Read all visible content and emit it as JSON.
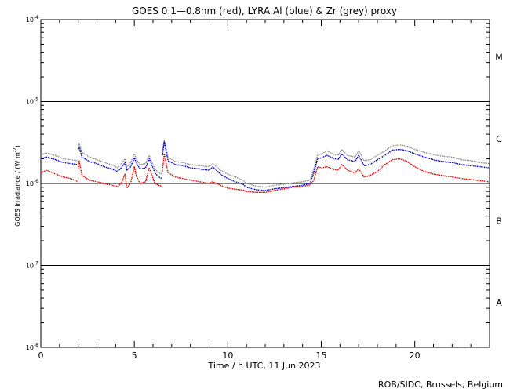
{
  "chart_data": {
    "type": "line",
    "title": "GOES 0.1—0.8nm (red), LYRA Al (blue) & Zr (grey) proxy",
    "xlabel": "Time / h UTC, 11 Jun 2023",
    "ylabel_parts": [
      "GOES Irradiance / (W m",
      "-2",
      ")"
    ],
    "credit": "ROB/SIDC, Brussels, Belgium",
    "xlim": [
      0,
      24
    ],
    "ylim": [
      1e-08,
      0.0001
    ],
    "yscale": "log",
    "x_ticks": [
      {
        "value": 0,
        "label": "0"
      },
      {
        "value": 5,
        "label": "5"
      },
      {
        "value": 10,
        "label": "10"
      },
      {
        "value": 15,
        "label": "15"
      },
      {
        "value": 20,
        "label": "20"
      }
    ],
    "y_ticks": [
      {
        "exp": -4,
        "base": "10",
        "sup": "-4"
      },
      {
        "exp": -5,
        "base": "10",
        "sup": "-5"
      },
      {
        "exp": -6,
        "base": "10",
        "sup": "-6"
      },
      {
        "exp": -7,
        "base": "10",
        "sup": "-7"
      },
      {
        "exp": -8,
        "base": "10",
        "sup": "-8"
      }
    ],
    "flare_class_lines": [
      1e-05,
      1e-06,
      1e-07
    ],
    "flare_classes": [
      {
        "label": "M",
        "center": 3.5e-05
      },
      {
        "label": "C",
        "center": 3.5e-06
      },
      {
        "label": "B",
        "center": 3.5e-07
      },
      {
        "label": "A",
        "center": 3.5e-08
      }
    ],
    "series": [
      {
        "color": "#909090",
        "segments": [
          {
            "x": [
              0,
              0.3,
              0.8,
              1.2,
              1.6,
              2.0
            ],
            "y": [
              2.25e-06,
              2.35e-06,
              2.2e-06,
              2e-06,
              1.95e-06,
              1.9e-06
            ]
          },
          {
            "x": [
              2.0,
              2.05,
              2.2,
              2.6,
              3.0,
              3.4,
              3.8,
              4.1,
              4.3,
              4.5,
              4.6,
              4.8,
              5.0,
              5.1,
              5.3,
              5.6,
              5.8,
              6.1,
              6.3,
              6.5
            ],
            "y": [
              2.9e-06,
              3.1e-06,
              2.4e-06,
              2.1e-06,
              1.95e-06,
              1.8e-06,
              1.7e-06,
              1.55e-06,
              1.75e-06,
              2e-06,
              1.6e-06,
              1.8e-06,
              2.3e-06,
              2e-06,
              1.7e-06,
              1.75e-06,
              2.2e-06,
              1.5e-06,
              1.35e-06,
              1.3e-06
            ]
          },
          {
            "x": [
              6.5,
              6.6,
              6.8,
              7.2,
              7.6,
              8.0,
              8.5,
              9.0,
              9.2,
              9.6,
              10.0,
              10.4,
              10.8,
              11.0,
              11.5,
              12.0,
              12.5,
              13.0,
              13.5,
              14.0,
              14.4,
              14.6,
              14.8,
              15.0,
              15.3,
              15.6,
              15.9,
              16.1,
              16.4,
              16.8,
              17.0,
              17.3,
              17.6,
              18.0,
              18.4,
              18.8,
              19.2,
              19.6,
              20.0,
              20.5,
              21.0,
              21.5,
              22.0,
              22.5,
              23.0,
              23.5,
              24.0
            ],
            "y": [
              2.5e-06,
              3.4e-06,
              2.1e-06,
              1.85e-06,
              1.8e-06,
              1.7e-06,
              1.65e-06,
              1.6e-06,
              1.75e-06,
              1.45e-06,
              1.3e-06,
              1.2e-06,
              1.1e-06,
              1e-06,
              9.3e-07,
              9e-07,
              9.5e-07,
              9.8e-07,
              1.02e-06,
              1.05e-06,
              1.1e-06,
              1.5e-06,
              2.2e-06,
              2.3e-06,
              2.5e-06,
              2.3e-06,
              2.2e-06,
              2.6e-06,
              2.2e-06,
              2.1e-06,
              2.5e-06,
              1.9e-06,
              1.95e-06,
              2.2e-06,
              2.5e-06,
              2.9e-06,
              2.95e-06,
              2.85e-06,
              2.6e-06,
              2.4e-06,
              2.25e-06,
              2.15e-06,
              2.1e-06,
              1.95e-06,
              1.9e-06,
              1.8e-06,
              1.75e-06
            ]
          }
        ]
      },
      {
        "color": "#0000cc",
        "segments": [
          {
            "x": [
              0,
              0.3,
              0.8,
              1.2,
              1.6,
              2.0
            ],
            "y": [
              2e-06,
              2.1e-06,
              1.95e-06,
              1.8e-06,
              1.75e-06,
              1.7e-06
            ]
          },
          {
            "x": [
              2.0,
              2.05,
              2.2,
              2.6,
              3.0,
              3.4,
              3.8,
              4.1,
              4.3,
              4.5,
              4.6,
              4.8,
              5.0,
              5.1,
              5.3,
              5.6,
              5.8,
              6.1,
              6.3,
              6.5
            ],
            "y": [
              2.6e-06,
              2.8e-06,
              2.1e-06,
              1.85e-06,
              1.75e-06,
              1.6e-06,
              1.5e-06,
              1.4e-06,
              1.55e-06,
              1.8e-06,
              1.45e-06,
              1.6e-06,
              2.05e-06,
              1.8e-06,
              1.5e-06,
              1.55e-06,
              2e-06,
              1.35e-06,
              1.2e-06,
              1.15e-06
            ]
          },
          {
            "x": [
              6.5,
              6.6,
              6.8,
              7.2,
              7.6,
              8.0,
              8.5,
              9.0,
              9.2,
              9.6,
              10.0,
              10.4,
              10.8,
              11.0,
              11.5,
              12.0,
              12.5,
              13.0,
              13.5,
              14.0,
              14.4,
              14.6,
              14.8,
              15.0,
              15.3,
              15.6,
              15.9,
              16.1,
              16.4,
              16.8,
              17.0,
              17.3,
              17.6,
              18.0,
              18.4,
              18.8,
              19.2,
              19.6,
              20.0,
              20.5,
              21.0,
              21.5,
              22.0,
              22.5,
              23.0,
              23.5,
              24.0
            ],
            "y": [
              2.2e-06,
              3.2e-06,
              1.9e-06,
              1.7e-06,
              1.65e-06,
              1.55e-06,
              1.5e-06,
              1.45e-06,
              1.6e-06,
              1.3e-06,
              1.15e-06,
              1.05e-06,
              9.8e-07,
              9e-07,
              8.4e-07,
              8.2e-07,
              8.6e-07,
              8.9e-07,
              9.2e-07,
              9.5e-07,
              1e-06,
              1.35e-06,
              2e-06,
              2.05e-06,
              2.2e-06,
              2.05e-06,
              1.95e-06,
              2.3e-06,
              1.95e-06,
              1.85e-06,
              2.2e-06,
              1.65e-06,
              1.7e-06,
              1.95e-06,
              2.2e-06,
              2.55e-06,
              2.6e-06,
              2.5e-06,
              2.3e-06,
              2.1e-06,
              1.95e-06,
              1.85e-06,
              1.8e-06,
              1.7e-06,
              1.65e-06,
              1.6e-06,
              1.55e-06
            ]
          }
        ]
      },
      {
        "color": "#e00000",
        "segments": [
          {
            "x": [
              0,
              0.3,
              0.8,
              1.2,
              1.6,
              2.0
            ],
            "y": [
              1.35e-06,
              1.45e-06,
              1.3e-06,
              1.2e-06,
              1.15e-06,
              1.05e-06
            ]
          },
          {
            "x": [
              2.0,
              2.05,
              2.2,
              2.6,
              3.0,
              3.4,
              3.8,
              4.1,
              4.3,
              4.5,
              4.6,
              4.8,
              5.0,
              5.1,
              5.3,
              5.6,
              5.8,
              6.1,
              6.3,
              6.5
            ],
            "y": [
              1.5e-06,
              1.9e-06,
              1.25e-06,
              1.1e-06,
              1.05e-06,
              1e-06,
              9.5e-07,
              9.2e-07,
              1e-06,
              1.3e-06,
              8.8e-07,
              1e-06,
              1.6e-06,
              1.25e-06,
              1e-06,
              1.05e-06,
              1.55e-06,
              1e-06,
              9.5e-07,
              9.2e-07
            ]
          },
          {
            "x": [
              6.5,
              6.6,
              6.8,
              7.2,
              7.6,
              8.0,
              8.5,
              9.0,
              9.2,
              9.6,
              10.0,
              10.4,
              10.8,
              11.0,
              11.5,
              12.0,
              12.5,
              13.0,
              13.5,
              14.0,
              14.4,
              14.6,
              14.8,
              15.0,
              15.3,
              15.6,
              15.9,
              16.1,
              16.4,
              16.8,
              17.0,
              17.3,
              17.6,
              18.0,
              18.4,
              18.8,
              19.2,
              19.6,
              20.0,
              20.5,
              21.0,
              21.5,
              22.0,
              22.5,
              23.0,
              23.5,
              24.0
            ],
            "y": [
              1.4e-06,
              2.3e-06,
              1.35e-06,
              1.2e-06,
              1.15e-06,
              1.1e-06,
              1.05e-06,
              1e-06,
              1.05e-06,
              9.5e-07,
              8.8e-07,
              8.5e-07,
              8.3e-07,
              8e-07,
              7.8e-07,
              7.8e-07,
              8.2e-07,
              8.6e-07,
              9e-07,
              9.2e-07,
              9.6e-07,
              1.1e-06,
              1.6e-06,
              1.55e-06,
              1.6e-06,
              1.5e-06,
              1.45e-06,
              1.7e-06,
              1.45e-06,
              1.35e-06,
              1.5e-06,
              1.2e-06,
              1.25e-06,
              1.4e-06,
              1.7e-06,
              1.95e-06,
              2e-06,
              1.85e-06,
              1.6e-06,
              1.4e-06,
              1.3e-06,
              1.25e-06,
              1.2e-06,
              1.15e-06,
              1.12e-06,
              1.08e-06,
              1.05e-06
            ]
          }
        ]
      }
    ]
  }
}
